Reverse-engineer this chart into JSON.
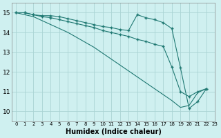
{
  "xlabel": "Humidex (Indice chaleur)",
  "xlim": [
    -0.5,
    23
  ],
  "ylim": [
    9.5,
    15.5
  ],
  "yticks": [
    10,
    11,
    12,
    13,
    14,
    15
  ],
  "xticks": [
    0,
    1,
    2,
    3,
    4,
    5,
    6,
    7,
    8,
    9,
    10,
    11,
    12,
    13,
    14,
    15,
    16,
    17,
    18,
    19,
    20,
    21,
    22,
    23
  ],
  "bg_color": "#cff0f0",
  "grid_color": "#aad4d4",
  "line_color": "#1f7872",
  "lines": [
    {
      "x": [
        0,
        1,
        2,
        3,
        4,
        5,
        6,
        7,
        8,
        9,
        10,
        11,
        12,
        13,
        14,
        15,
        16,
        17,
        18,
        19,
        20,
        21,
        22
      ],
      "y": [
        15.0,
        15.0,
        14.9,
        14.85,
        14.85,
        14.8,
        14.7,
        14.6,
        14.5,
        14.4,
        14.3,
        14.25,
        14.15,
        14.1,
        14.9,
        14.75,
        14.65,
        14.5,
        14.2,
        12.2,
        10.15,
        10.5,
        11.15
      ],
      "marker": true,
      "dashed": false
    },
    {
      "x": [
        0,
        1,
        2,
        3,
        4,
        5,
        6,
        7,
        8,
        9,
        10,
        11,
        12,
        13,
        14,
        15,
        16,
        17,
        18,
        19,
        20,
        21,
        22
      ],
      "y": [
        15.0,
        15.0,
        14.9,
        14.8,
        14.75,
        14.65,
        14.55,
        14.45,
        14.35,
        14.25,
        14.1,
        14.0,
        13.9,
        13.8,
        13.65,
        13.55,
        13.4,
        13.3,
        12.25,
        11.0,
        10.75,
        11.0,
        11.15
      ],
      "marker": true,
      "dashed": false
    },
    {
      "x": [
        0,
        1,
        2,
        3,
        4,
        5,
        6,
        7,
        8,
        9,
        10,
        11,
        12,
        13,
        14,
        15,
        16,
        17,
        18,
        19,
        20,
        21,
        22
      ],
      "y": [
        15.0,
        14.9,
        14.8,
        14.6,
        14.4,
        14.2,
        14.0,
        13.75,
        13.5,
        13.25,
        12.95,
        12.65,
        12.35,
        12.05,
        11.75,
        11.45,
        11.15,
        10.85,
        10.55,
        10.2,
        10.3,
        10.95,
        11.15
      ],
      "marker": false,
      "dashed": false
    }
  ]
}
